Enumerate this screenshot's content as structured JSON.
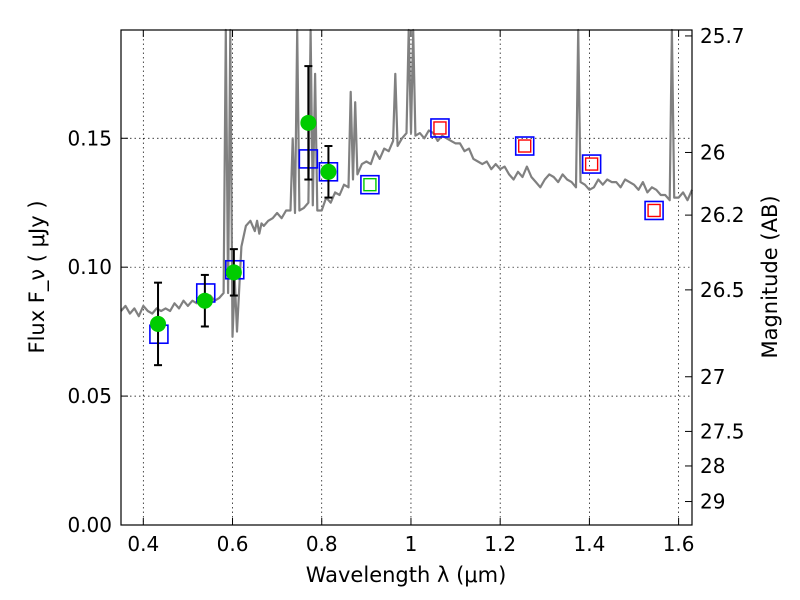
{
  "chart_data": {
    "type": "scatter",
    "xlabel": "Wavelength  λ (μm)",
    "ylabel": "Flux  F_ν  ( μJy )",
    "y2label": "Magnitude (AB)",
    "xlim": [
      0.35,
      1.63
    ],
    "ylim": [
      0.0,
      0.192
    ],
    "grid": true,
    "x_ticks": [
      0.4,
      0.6,
      0.8,
      1.0,
      1.2,
      1.4,
      1.6
    ],
    "x_tick_labels": [
      "0.4",
      "0.6",
      "0.8",
      "1",
      "1.2",
      "1.4",
      "1.6"
    ],
    "y_ticks": [
      0.0,
      0.05,
      0.1,
      0.15
    ],
    "y_tick_labels": [
      "0.00",
      "0.05",
      "0.10",
      "0.15"
    ],
    "y2_ticks": [
      {
        "label": "25.7",
        "flux": 0.1897
      },
      {
        "label": "26",
        "flux": 0.1445
      },
      {
        "label": "26.2",
        "flux": 0.1202
      },
      {
        "label": "26.5",
        "flux": 0.0912
      },
      {
        "label": "27",
        "flux": 0.0575
      },
      {
        "label": "27.5",
        "flux": 0.0363
      },
      {
        "label": "28",
        "flux": 0.0229
      },
      {
        "label": "29",
        "flux": 0.0091
      }
    ],
    "series": [
      {
        "kind": "spectrum",
        "color": "#808080",
        "x": [
          0.35,
          0.36,
          0.37,
          0.38,
          0.39,
          0.4,
          0.41,
          0.42,
          0.43,
          0.44,
          0.45,
          0.46,
          0.47,
          0.48,
          0.49,
          0.5,
          0.51,
          0.52,
          0.53,
          0.54,
          0.55,
          0.56,
          0.57,
          0.58,
          0.585,
          0.59,
          0.595,
          0.6,
          0.605,
          0.61,
          0.62,
          0.63,
          0.64,
          0.65,
          0.655,
          0.66,
          0.665,
          0.67,
          0.68,
          0.69,
          0.7,
          0.71,
          0.72,
          0.73,
          0.735,
          0.74,
          0.745,
          0.75,
          0.76,
          0.77,
          0.775,
          0.78,
          0.785,
          0.79,
          0.8,
          0.81,
          0.82,
          0.83,
          0.84,
          0.85,
          0.86,
          0.865,
          0.87,
          0.875,
          0.88,
          0.89,
          0.9,
          0.91,
          0.92,
          0.93,
          0.94,
          0.95,
          0.96,
          0.965,
          0.97,
          0.98,
          0.99,
          0.995,
          1.0,
          1.005,
          1.01,
          1.02,
          1.03,
          1.04,
          1.05,
          1.06,
          1.07,
          1.08,
          1.09,
          1.1,
          1.11,
          1.12,
          1.13,
          1.14,
          1.15,
          1.16,
          1.17,
          1.18,
          1.19,
          1.2,
          1.21,
          1.22,
          1.23,
          1.24,
          1.25,
          1.26,
          1.27,
          1.28,
          1.29,
          1.3,
          1.31,
          1.32,
          1.33,
          1.34,
          1.35,
          1.36,
          1.37,
          1.375,
          1.38,
          1.39,
          1.4,
          1.41,
          1.42,
          1.43,
          1.44,
          1.45,
          1.46,
          1.47,
          1.48,
          1.49,
          1.5,
          1.51,
          1.52,
          1.53,
          1.54,
          1.55,
          1.56,
          1.57,
          1.58,
          1.585,
          1.59,
          1.6,
          1.61,
          1.62,
          1.63
        ],
        "y": [
          0.083,
          0.085,
          0.082,
          0.084,
          0.081,
          0.085,
          0.083,
          0.082,
          0.084,
          0.083,
          0.084,
          0.083,
          0.086,
          0.084,
          0.087,
          0.085,
          0.087,
          0.086,
          0.088,
          0.087,
          0.089,
          0.087,
          0.088,
          0.09,
          0.193,
          0.09,
          0.193,
          0.073,
          0.095,
          0.075,
          0.108,
          0.116,
          0.118,
          0.114,
          0.118,
          0.113,
          0.117,
          0.116,
          0.118,
          0.119,
          0.121,
          0.119,
          0.122,
          0.122,
          0.15,
          0.121,
          0.193,
          0.122,
          0.123,
          0.125,
          0.193,
          0.124,
          0.175,
          0.122,
          0.122,
          0.127,
          0.125,
          0.129,
          0.128,
          0.132,
          0.131,
          0.168,
          0.134,
          0.164,
          0.136,
          0.14,
          0.141,
          0.14,
          0.145,
          0.142,
          0.146,
          0.145,
          0.149,
          0.175,
          0.147,
          0.15,
          0.152,
          0.193,
          0.152,
          0.193,
          0.151,
          0.152,
          0.15,
          0.153,
          0.152,
          0.149,
          0.151,
          0.15,
          0.149,
          0.148,
          0.148,
          0.145,
          0.146,
          0.142,
          0.141,
          0.14,
          0.141,
          0.138,
          0.14,
          0.138,
          0.139,
          0.136,
          0.134,
          0.137,
          0.135,
          0.139,
          0.135,
          0.133,
          0.131,
          0.134,
          0.136,
          0.135,
          0.133,
          0.136,
          0.134,
          0.133,
          0.131,
          0.193,
          0.133,
          0.132,
          0.13,
          0.131,
          0.134,
          0.132,
          0.134,
          0.133,
          0.133,
          0.131,
          0.134,
          0.133,
          0.132,
          0.13,
          0.133,
          0.129,
          0.131,
          0.13,
          0.128,
          0.128,
          0.126,
          0.193,
          0.127,
          0.127,
          0.129,
          0.126,
          0.13
        ]
      },
      {
        "kind": "square-blue",
        "color": "#0000ff",
        "x": [
          0.435,
          0.54,
          0.605,
          0.77,
          0.815,
          0.908,
          1.065,
          1.255,
          1.405,
          1.545
        ],
        "y": [
          0.074,
          0.09,
          0.099,
          0.142,
          0.137,
          0.132,
          0.154,
          0.147,
          0.14,
          0.122
        ]
      },
      {
        "kind": "square-red",
        "color": "#ff0000",
        "x": [
          1.065,
          1.255,
          1.405,
          1.545
        ],
        "y": [
          0.154,
          0.147,
          0.14,
          0.122
        ]
      },
      {
        "kind": "square-green",
        "color": "#00cc00",
        "x": [
          0.908
        ],
        "y": [
          0.132
        ]
      },
      {
        "kind": "circle-green",
        "color": "#00cc00",
        "x": [
          0.433,
          0.538,
          0.603,
          0.77,
          0.815
        ],
        "y": [
          0.078,
          0.087,
          0.098,
          0.156,
          0.137
        ],
        "err": [
          0.016,
          0.01,
          0.009,
          0.022,
          0.01
        ]
      }
    ]
  }
}
